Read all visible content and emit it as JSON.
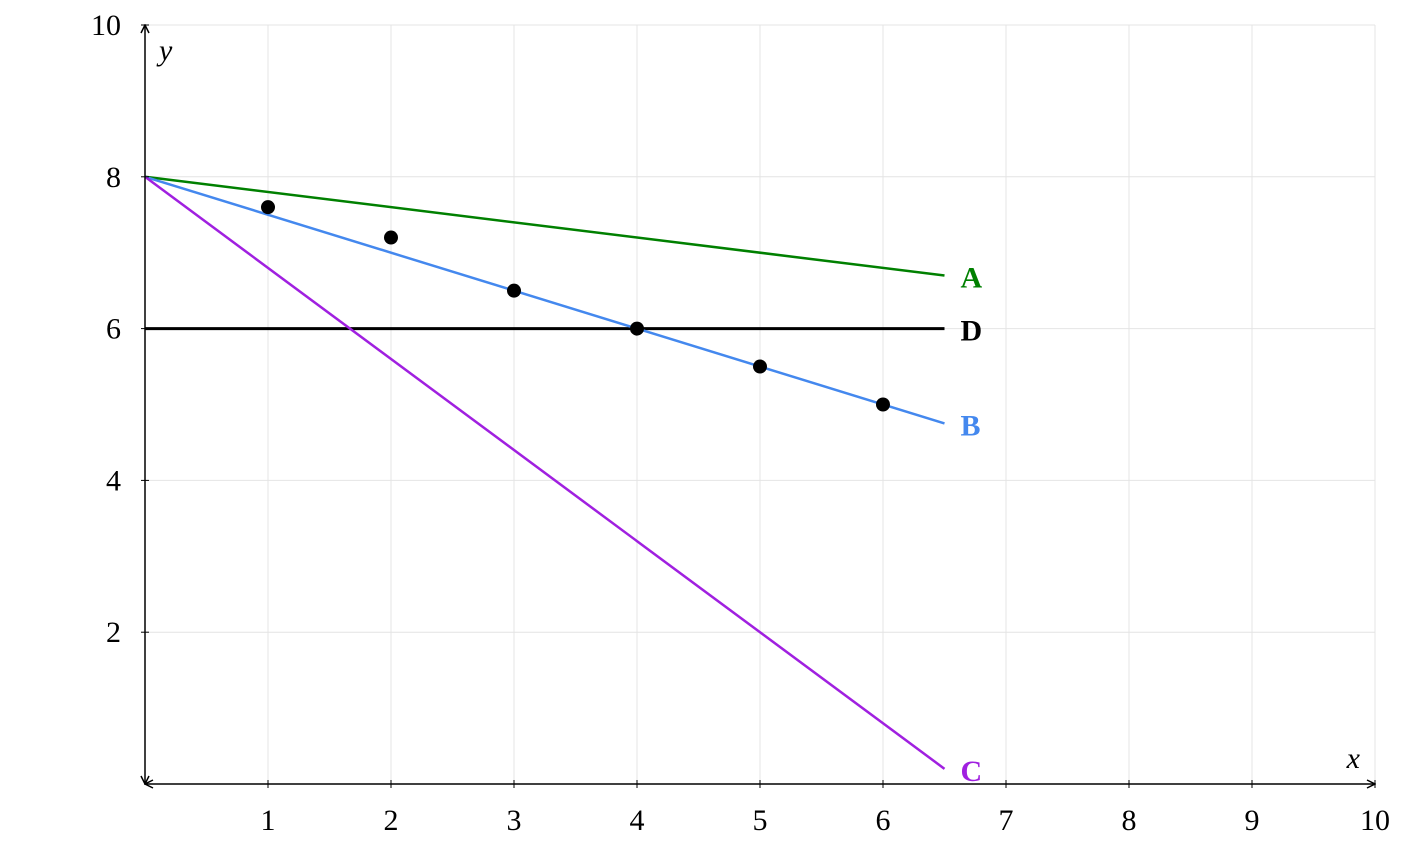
{
  "chart_data": {
    "type": "line",
    "x_label": "x",
    "y_label": "y",
    "xlim": [
      0,
      10
    ],
    "ylim": [
      0,
      10
    ],
    "xticks": [
      1,
      2,
      3,
      4,
      5,
      6,
      7,
      8,
      9,
      10
    ],
    "yticks": [
      2,
      4,
      6,
      8,
      10
    ],
    "grid": true,
    "series": [
      {
        "name": "A",
        "color": "#008000",
        "x": [
          0,
          6.5
        ],
        "values": [
          8,
          6.7
        ]
      },
      {
        "name": "D",
        "color": "#000000",
        "x": [
          0,
          6.5
        ],
        "values": [
          6,
          6
        ]
      },
      {
        "name": "B",
        "color": "#4488ee",
        "x": [
          0,
          6.5
        ],
        "values": [
          8,
          4.75
        ]
      },
      {
        "name": "C",
        "color": "#a020e0",
        "x": [
          0,
          6.5
        ],
        "values": [
          8,
          0.2
        ]
      }
    ],
    "points": {
      "type": "scatter",
      "color": "#000000",
      "x": [
        1,
        2,
        3,
        4,
        5,
        6
      ],
      "values": [
        7.6,
        7.2,
        6.5,
        6,
        5.5,
        5
      ]
    }
  }
}
